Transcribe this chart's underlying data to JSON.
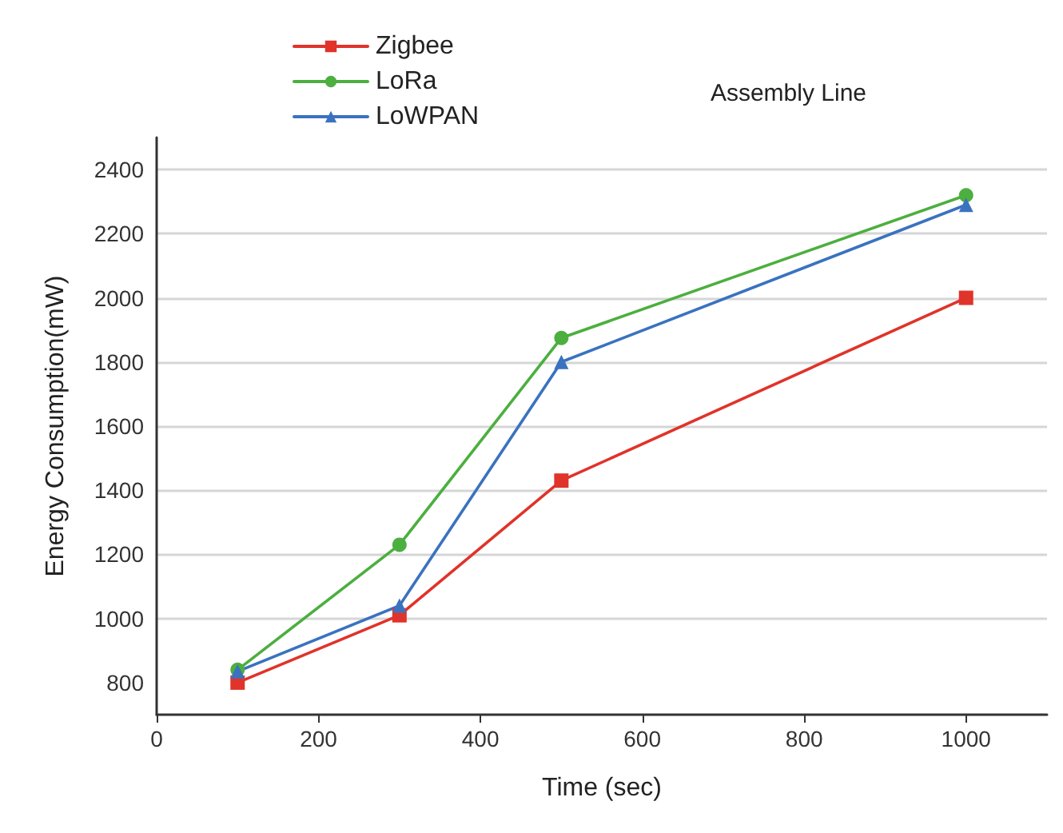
{
  "chart_data": {
    "type": "line",
    "title": "Assembly Line",
    "xlabel": "Time (sec)",
    "ylabel": "Energy Consumption(mW)",
    "x": [
      100,
      300,
      500,
      1000
    ],
    "series": [
      {
        "name": "Zigbee",
        "color": "#e0332a",
        "marker": "square",
        "values": [
          800,
          1010,
          1430,
          2000
        ]
      },
      {
        "name": "LoRa",
        "color": "#4caf3f",
        "marker": "circle",
        "values": [
          840,
          1230,
          1875,
          2320
        ]
      },
      {
        "name": "LoWPAN",
        "color": "#3a72c0",
        "marker": "triangle",
        "values": [
          835,
          1040,
          1800,
          2290
        ]
      }
    ],
    "xlim": [
      0,
      1100
    ],
    "xticks": [
      0,
      200,
      400,
      600,
      800,
      1000
    ],
    "ylim": [
      700,
      2500
    ],
    "yticks": [
      800,
      1000,
      1200,
      1400,
      1600,
      1800,
      2000,
      2200,
      2400
    ],
    "grid": "y",
    "legend": "top left",
    "line_style": "solid"
  }
}
